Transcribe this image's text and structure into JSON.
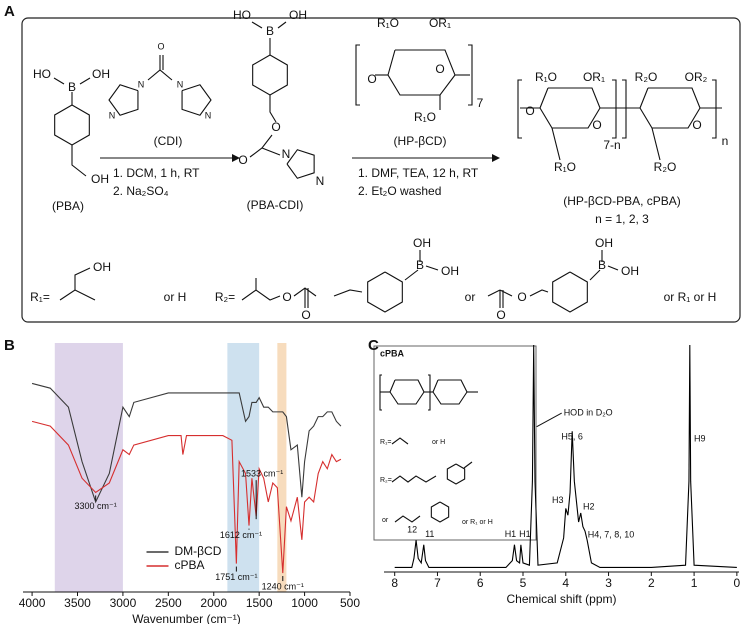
{
  "scheme": {
    "panel": "A",
    "pba": {
      "atoms": [
        "HO",
        "B",
        "OH",
        "OH"
      ],
      "name": "(PBA)"
    },
    "cdi": {
      "atoms": [
        "O",
        "N",
        "N",
        "N",
        "N"
      ],
      "name": "(CDI)"
    },
    "step1": [
      "1. DCM, 1 h, RT",
      "2. Na₂SO₄"
    ],
    "pba_cdi": {
      "atoms": [
        "B",
        "OH",
        "HO",
        "O",
        "O",
        "N",
        "N"
      ],
      "name": "(PBA-CDI)"
    },
    "hp_bcd": {
      "atoms": [
        "R₁O",
        "OR₁",
        "O",
        "O",
        "R₁O"
      ],
      "repeat": "7",
      "name": "(HP-βCD)"
    },
    "step2": [
      "1. DMF, TEA, 12 h, RT",
      "2. Et₂O washed"
    ],
    "product": {
      "atoms": [
        "R₁O",
        "OR₁",
        "R₂O",
        "OR₂",
        "O",
        "O",
        "O",
        "R₁O",
        "R₂O"
      ],
      "repeats": [
        "7-n",
        "n"
      ],
      "name": "(HP-βCD-PBA, cPBA)",
      "n_values": "n = 1, 2, 3"
    },
    "r_groups": {
      "r1": "R₁=",
      "r1_oh": "OH",
      "r1_alt": "or H",
      "r2": "R₂=",
      "r2_o": [
        "O",
        "O"
      ],
      "r2_b_oh": [
        "OH",
        "B",
        "OH"
      ],
      "or": "or",
      "r3_o": [
        "O",
        "O"
      ],
      "r3_b_oh": [
        "OH",
        "B",
        "OH"
      ],
      "r2_alt": "or R₁ or H"
    }
  },
  "chart_data": [
    {
      "panel": "B",
      "type": "line",
      "x_label": "Wavenumber (cm⁻¹)",
      "xlim": [
        4100,
        500
      ],
      "xticks": [
        4000,
        3500,
        3000,
        2500,
        2000,
        1500,
        1000,
        500
      ],
      "ylim": [
        0,
        100
      ],
      "x": [
        4000,
        3800,
        3600,
        3450,
        3300,
        3150,
        3000,
        2930,
        2880,
        2500,
        2360,
        2340,
        2300,
        1900,
        1800,
        1751,
        1720,
        1650,
        1612,
        1580,
        1533,
        1500,
        1450,
        1400,
        1350,
        1300,
        1240,
        1200,
        1150,
        1080,
        1030,
        1000,
        950,
        900,
        850,
        800,
        750,
        700,
        650,
        600
      ],
      "series": [
        {
          "name": "DM-βCD",
          "color": "#3a3a3a",
          "values": [
            88,
            86,
            78,
            55,
            38,
            50,
            78,
            74,
            80,
            84,
            84,
            84,
            84,
            84,
            84,
            84,
            84,
            72,
            74,
            80,
            80,
            82,
            78,
            78,
            76,
            76,
            76,
            74,
            60,
            62,
            40,
            55,
            68,
            70,
            74,
            74,
            76,
            76,
            72,
            70
          ]
        },
        {
          "name": "cPBA",
          "color": "#d62f2f",
          "values": [
            72,
            70,
            62,
            48,
            42,
            46,
            60,
            58,
            62,
            66,
            66,
            58,
            66,
            66,
            64,
            12,
            55,
            50,
            28,
            48,
            32,
            52,
            48,
            38,
            46,
            44,
            8,
            36,
            30,
            40,
            22,
            38,
            40,
            38,
            50,
            55,
            52,
            58,
            55,
            56
          ]
        }
      ],
      "bands": [
        {
          "from": 3750,
          "to": 3000,
          "color": "#d8cce6"
        },
        {
          "from": 1850,
          "to": 1500,
          "color": "#c6dcec"
        },
        {
          "from": 1300,
          "to": 1200,
          "color": "#f6d6b2"
        }
      ],
      "annotations": [
        {
          "x": 3300,
          "label": "3300 cm⁻¹"
        },
        {
          "x": 1751,
          "label": "1751 cm⁻¹"
        },
        {
          "x": 1612,
          "label": "1612 cm⁻¹"
        },
        {
          "x": 1533,
          "label": "1533 cm⁻¹"
        },
        {
          "x": 1240,
          "label": "1240 cm⁻¹"
        }
      ],
      "legend": "lower center"
    },
    {
      "panel": "C",
      "type": "line",
      "x_label": "Chemical shift (ppm)",
      "xlim": [
        8.25,
        -0.05
      ],
      "xticks": [
        8,
        7,
        6,
        5,
        4,
        3,
        2,
        1,
        0
      ],
      "ylim": [
        0,
        100
      ],
      "x": [
        8,
        7.6,
        7.55,
        7.5,
        7.45,
        7.38,
        7.32,
        7.28,
        7.2,
        6,
        5.4,
        5.25,
        5.2,
        5.15,
        5.08,
        5.05,
        5.0,
        4.85,
        4.78,
        4.75,
        4.72,
        4.65,
        4.2,
        4.05,
        4.0,
        3.95,
        3.9,
        3.85,
        3.8,
        3.7,
        3.65,
        3.6,
        3.55,
        3.5,
        3.4,
        3.2,
        2,
        1.2,
        1.12,
        1.1,
        1.08,
        1.0,
        0
      ],
      "series": [
        {
          "color": "#000000",
          "values": [
            2,
            2,
            6,
            14,
            6,
            4,
            12,
            5,
            2,
            2,
            2,
            5,
            12,
            5,
            4,
            12,
            4,
            3,
            40,
            100,
            40,
            3,
            4,
            15,
            28,
            25,
            35,
            62,
            40,
            22,
            26,
            20,
            18,
            14,
            4,
            2,
            2,
            3,
            40,
            100,
            40,
            3,
            2
          ]
        }
      ],
      "annotations": [
        {
          "x": 7.5,
          "label": "12"
        },
        {
          "x": 7.32,
          "label": "11"
        },
        {
          "x": 5.2,
          "label": "H1"
        },
        {
          "x": 5.05,
          "label": "H1"
        },
        {
          "x": 4.75,
          "label": "HOD in D₂O"
        },
        {
          "x": 3.85,
          "label": "H5, 6"
        },
        {
          "x": 4.0,
          "label": "H3"
        },
        {
          "x": 3.65,
          "label": "H2"
        },
        {
          "x": 3.55,
          "label": "H4, 7, 8, 10"
        },
        {
          "x": 1.1,
          "label": "H9"
        }
      ],
      "inset": {
        "title": "cPBA",
        "r1": "R₁=",
        "r1_alt": "or H",
        "r2": "R₂=",
        "or": "or",
        "r2_alt": "or R₁ or H"
      }
    }
  ]
}
